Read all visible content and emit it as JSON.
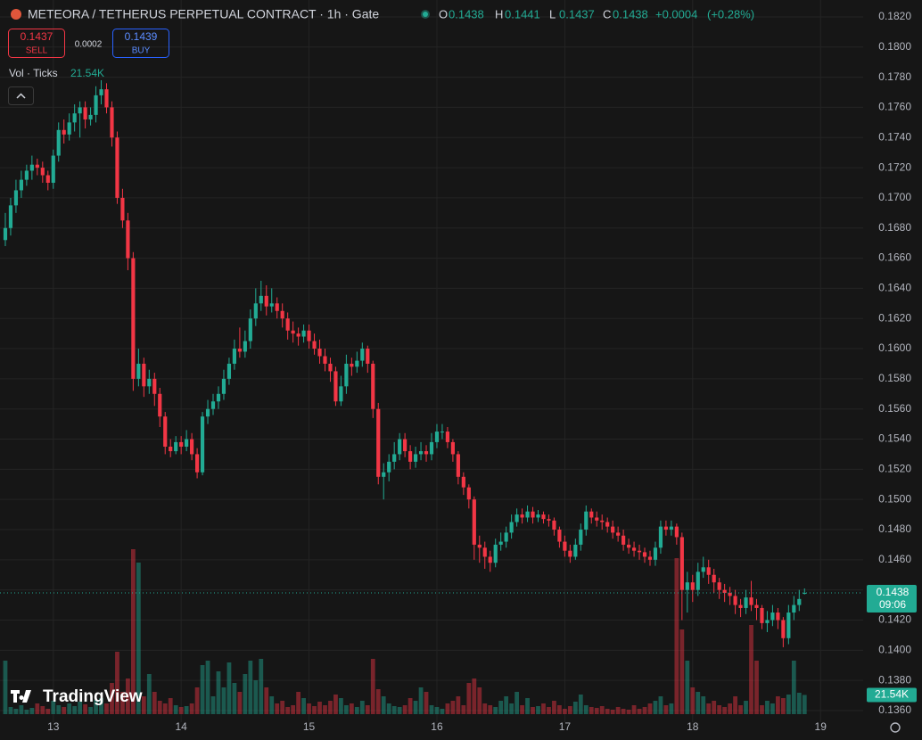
{
  "chart_data": {
    "type": "candlestick",
    "title": "METEORA / TETHERUS PERPETUAL CONTRACT · 1h · Gate",
    "header": {
      "ohlc": [
        {
          "label": "O",
          "value": 0.1438
        },
        {
          "label": "H",
          "value": 0.1441
        },
        {
          "label": "L",
          "value": 0.1437
        },
        {
          "label": "C",
          "value": 0.1438
        }
      ],
      "change": "+0.0004",
      "change_pct": "(+0.28%)"
    },
    "trade": {
      "sell_price": 0.1437,
      "sell_label": "SELL",
      "spread": 0.0002,
      "buy_price": 0.1439,
      "buy_label": "BUY"
    },
    "countdown": "09:06",
    "brand": "TradingView",
    "up_color": "#22ab94",
    "down_color": "#f23645",
    "open": [
      0.1672,
      0.168,
      0.1695,
      0.1705,
      0.1712,
      0.1718,
      0.1722,
      0.172,
      0.1715,
      0.171,
      0.1728,
      0.1745,
      0.1742,
      0.175,
      0.1756,
      0.176,
      0.1752,
      0.1755,
      0.1768,
      0.1772,
      0.176,
      0.174,
      0.17,
      0.1685,
      0.166,
      0.158,
      0.159,
      0.1575,
      0.158,
      0.157,
      0.1555,
      0.1535,
      0.1532,
      0.1538,
      0.1535,
      0.154,
      0.153,
      0.1518,
      0.1555,
      0.156,
      0.1565,
      0.157,
      0.158,
      0.159,
      0.16,
      0.1598,
      0.1605,
      0.162,
      0.163,
      0.1635,
      0.1628,
      0.163,
      0.1625,
      0.162,
      0.1612,
      0.161,
      0.1608,
      0.1612,
      0.1605,
      0.16,
      0.1595,
      0.159,
      0.1585,
      0.1565,
      0.1575,
      0.159,
      0.1588,
      0.1592,
      0.16,
      0.159,
      0.156,
      0.1515,
      0.1518,
      0.1525,
      0.153,
      0.154,
      0.1532,
      0.1525,
      0.153,
      0.1532,
      0.153,
      0.1538,
      0.1545,
      0.1545,
      0.1538,
      0.153,
      0.1515,
      0.1508,
      0.15,
      0.147,
      0.1468,
      0.1462,
      0.1458,
      0.147,
      0.1472,
      0.1478,
      0.1485,
      0.149,
      0.1488,
      0.1492,
      0.1488,
      0.149,
      0.1487,
      0.1486,
      0.148,
      0.1472,
      0.1466,
      0.1462,
      0.147,
      0.148,
      0.1492,
      0.1488,
      0.1486,
      0.1485,
      0.1482,
      0.1478,
      0.1476,
      0.147,
      0.1468,
      0.1466,
      0.1465,
      0.1462,
      0.146,
      0.1468,
      0.1482,
      0.148,
      0.1482,
      0.1475,
      0.144,
      0.1445,
      0.144,
      0.1452,
      0.1455,
      0.145,
      0.1445,
      0.144,
      0.1438,
      0.1436,
      0.143,
      0.1428,
      0.1435,
      0.143,
      0.1428,
      0.1418,
      0.142,
      0.1425,
      0.142,
      0.1408,
      0.1425,
      0.143,
      0.1438
    ],
    "high": [
      0.169,
      0.17,
      0.1712,
      0.1718,
      0.1722,
      0.1728,
      0.1726,
      0.1724,
      0.1718,
      0.1732,
      0.175,
      0.1752,
      0.1756,
      0.1762,
      0.1764,
      0.1764,
      0.176,
      0.1774,
      0.1778,
      0.1776,
      0.1764,
      0.1744,
      0.1706,
      0.169,
      0.1664,
      0.16,
      0.1594,
      0.1586,
      0.1584,
      0.1574,
      0.1558,
      0.154,
      0.1542,
      0.1542,
      0.1546,
      0.1544,
      0.1534,
      0.1558,
      0.1566,
      0.157,
      0.1575,
      0.1586,
      0.1594,
      0.1606,
      0.1614,
      0.1612,
      0.1626,
      0.164,
      0.1645,
      0.1642,
      0.164,
      0.1634,
      0.163,
      0.1624,
      0.1618,
      0.1614,
      0.1616,
      0.1616,
      0.161,
      0.1606,
      0.16,
      0.1594,
      0.1588,
      0.1582,
      0.1596,
      0.1594,
      0.1598,
      0.1604,
      0.1602,
      0.1592,
      0.1564,
      0.1524,
      0.153,
      0.1538,
      0.1544,
      0.1544,
      0.1536,
      0.1535,
      0.1538,
      0.1536,
      0.1544,
      0.155,
      0.155,
      0.1548,
      0.154,
      0.1532,
      0.1518,
      0.151,
      0.1502,
      0.1476,
      0.1472,
      0.1466,
      0.1474,
      0.1478,
      0.1482,
      0.149,
      0.1494,
      0.1494,
      0.1496,
      0.1495,
      0.1493,
      0.1492,
      0.149,
      0.1488,
      0.1482,
      0.1476,
      0.147,
      0.1474,
      0.1484,
      0.1496,
      0.1494,
      0.1492,
      0.149,
      0.1488,
      0.1486,
      0.1482,
      0.148,
      0.1474,
      0.1472,
      0.147,
      0.1468,
      0.1466,
      0.1472,
      0.1486,
      0.1486,
      0.1486,
      0.1484,
      0.1478,
      0.1452,
      0.145,
      0.1458,
      0.1462,
      0.146,
      0.1454,
      0.1448,
      0.1444,
      0.1442,
      0.144,
      0.1434,
      0.144,
      0.1446,
      0.1434,
      0.143,
      0.1426,
      0.143,
      0.1428,
      0.1422,
      0.143,
      0.1436,
      0.144,
      0.1441
    ],
    "low": [
      0.1668,
      0.1675,
      0.169,
      0.17,
      0.1708,
      0.1712,
      0.1715,
      0.171,
      0.1705,
      0.1706,
      0.1724,
      0.1736,
      0.1738,
      0.1744,
      0.174,
      0.1746,
      0.1748,
      0.175,
      0.1762,
      0.1756,
      0.1734,
      0.1696,
      0.168,
      0.1652,
      0.1572,
      0.1575,
      0.1568,
      0.157,
      0.1562,
      0.1548,
      0.153,
      0.1528,
      0.153,
      0.153,
      0.1532,
      0.1526,
      0.1514,
      0.1516,
      0.155,
      0.1556,
      0.156,
      0.1566,
      0.1576,
      0.1586,
      0.1594,
      0.1594,
      0.16,
      0.1615,
      0.1625,
      0.1622,
      0.1624,
      0.162,
      0.1614,
      0.1606,
      0.1604,
      0.1602,
      0.1604,
      0.16,
      0.1596,
      0.159,
      0.1585,
      0.1578,
      0.1562,
      0.1562,
      0.157,
      0.1582,
      0.1584,
      0.1588,
      0.1584,
      0.1554,
      0.151,
      0.15,
      0.1512,
      0.152,
      0.1526,
      0.1528,
      0.152,
      0.1521,
      0.1526,
      0.1525,
      0.1526,
      0.1534,
      0.154,
      0.1534,
      0.1525,
      0.151,
      0.1503,
      0.1494,
      0.146,
      0.1458,
      0.1454,
      0.1452,
      0.1455,
      0.1466,
      0.1468,
      0.1474,
      0.1482,
      0.1484,
      0.1485,
      0.1484,
      0.1485,
      0.1484,
      0.1482,
      0.1476,
      0.1468,
      0.1462,
      0.1458,
      0.146,
      0.1466,
      0.1476,
      0.1484,
      0.1482,
      0.148,
      0.1478,
      0.1474,
      0.1472,
      0.1466,
      0.1464,
      0.1462,
      0.146,
      0.1458,
      0.1456,
      0.1456,
      0.1464,
      0.1476,
      0.1476,
      0.147,
      0.142,
      0.1425,
      0.1432,
      0.1436,
      0.1448,
      0.1444,
      0.1438,
      0.1434,
      0.1432,
      0.143,
      0.1424,
      0.1422,
      0.1424,
      0.1426,
      0.142,
      0.1414,
      0.1412,
      0.1416,
      0.1414,
      0.1402,
      0.1404,
      0.142,
      0.1426,
      0.1437
    ],
    "close": [
      0.168,
      0.1695,
      0.1705,
      0.1712,
      0.1718,
      0.1722,
      0.172,
      0.1715,
      0.171,
      0.1728,
      0.1745,
      0.1742,
      0.175,
      0.1756,
      0.176,
      0.1752,
      0.1755,
      0.1768,
      0.1772,
      0.176,
      0.174,
      0.17,
      0.1685,
      0.166,
      0.158,
      0.159,
      0.1575,
      0.158,
      0.157,
      0.1555,
      0.1535,
      0.1532,
      0.1538,
      0.1535,
      0.154,
      0.153,
      0.1518,
      0.1555,
      0.156,
      0.1565,
      0.157,
      0.158,
      0.159,
      0.16,
      0.1598,
      0.1605,
      0.162,
      0.163,
      0.1635,
      0.1628,
      0.163,
      0.1625,
      0.162,
      0.1612,
      0.161,
      0.1608,
      0.1612,
      0.1605,
      0.16,
      0.1595,
      0.159,
      0.1585,
      0.1565,
      0.1575,
      0.159,
      0.1588,
      0.1592,
      0.16,
      0.159,
      0.156,
      0.1515,
      0.1518,
      0.1525,
      0.153,
      0.154,
      0.1532,
      0.1525,
      0.153,
      0.1532,
      0.153,
      0.1538,
      0.1545,
      0.1545,
      0.1538,
      0.153,
      0.1515,
      0.1508,
      0.15,
      0.147,
      0.1468,
      0.1462,
      0.1458,
      0.147,
      0.1472,
      0.1478,
      0.1485,
      0.149,
      0.1488,
      0.1492,
      0.1488,
      0.149,
      0.1487,
      0.1486,
      0.148,
      0.1472,
      0.1466,
      0.1462,
      0.147,
      0.148,
      0.1492,
      0.1488,
      0.1486,
      0.1485,
      0.1482,
      0.1478,
      0.1476,
      0.147,
      0.1468,
      0.1466,
      0.1465,
      0.1462,
      0.146,
      0.1468,
      0.1482,
      0.148,
      0.1482,
      0.1475,
      0.144,
      0.1445,
      0.144,
      0.1452,
      0.1455,
      0.145,
      0.1445,
      0.144,
      0.1438,
      0.1436,
      0.143,
      0.1428,
      0.1435,
      0.143,
      0.1428,
      0.1418,
      0.142,
      0.1425,
      0.142,
      0.1408,
      0.1425,
      0.143,
      0.1434,
      0.1438
    ],
    "volume": {
      "name": "Vol · Ticks",
      "last_label": "21.54K",
      "values": [
        60,
        8,
        6,
        10,
        5,
        7,
        12,
        9,
        6,
        15,
        10,
        8,
        12,
        9,
        14,
        11,
        8,
        16,
        18,
        12,
        35,
        70,
        25,
        40,
        185,
        170,
        20,
        45,
        25,
        15,
        12,
        18,
        10,
        8,
        9,
        12,
        30,
        55,
        60,
        20,
        48,
        30,
        58,
        35,
        25,
        45,
        60,
        38,
        62,
        30,
        20,
        12,
        15,
        8,
        10,
        25,
        18,
        12,
        9,
        14,
        10,
        15,
        22,
        18,
        10,
        12,
        8,
        15,
        10,
        62,
        28,
        20,
        12,
        9,
        8,
        10,
        18,
        15,
        30,
        25,
        10,
        8,
        6,
        12,
        15,
        20,
        10,
        35,
        40,
        30,
        12,
        10,
        8,
        15,
        20,
        12,
        25,
        10,
        18,
        8,
        9,
        12,
        8,
        15,
        10,
        6,
        9,
        14,
        22,
        10,
        8,
        7,
        9,
        6,
        5,
        8,
        6,
        5,
        10,
        6,
        8,
        12,
        15,
        20,
        10,
        12,
        175,
        95,
        60,
        30,
        25,
        20,
        12,
        15,
        10,
        8,
        12,
        20,
        10,
        15,
        100,
        60,
        10,
        15,
        12,
        20,
        18,
        22,
        60,
        24,
        21.54
      ]
    },
    "xlim": [
      -1,
      161
    ],
    "xticks": [
      {
        "value": 9,
        "label": "13"
      },
      {
        "value": 33,
        "label": "14"
      },
      {
        "value": 57,
        "label": "15"
      },
      {
        "value": 81,
        "label": "16"
      },
      {
        "value": 105,
        "label": "17"
      },
      {
        "value": 129,
        "label": "18"
      },
      {
        "value": 153,
        "label": "19"
      }
    ],
    "ylim": [
      0.13523,
      0.18312
    ],
    "yticks": [
      {
        "value": 0.136,
        "label": "0.1360"
      },
      {
        "value": 0.138,
        "label": "0.1380"
      },
      {
        "value": 0.14,
        "label": "0.1400"
      },
      {
        "value": 0.142,
        "label": "0.1420"
      },
      {
        "value": 0.144,
        "label": "0.1440"
      },
      {
        "value": 0.146,
        "label": "0.1460"
      },
      {
        "value": 0.148,
        "label": "0.1480"
      },
      {
        "value": 0.15,
        "label": "0.1500"
      },
      {
        "value": 0.152,
        "label": "0.1520"
      },
      {
        "value": 0.154,
        "label": "0.1540"
      },
      {
        "value": 0.156,
        "label": "0.1560"
      },
      {
        "value": 0.158,
        "label": "0.1580"
      },
      {
        "value": 0.16,
        "label": "0.1600"
      },
      {
        "value": 0.162,
        "label": "0.1620"
      },
      {
        "value": 0.164,
        "label": "0.1640"
      },
      {
        "value": 0.166,
        "label": "0.1660"
      },
      {
        "value": 0.168,
        "label": "0.1680"
      },
      {
        "value": 0.17,
        "label": "0.1700"
      },
      {
        "value": 0.172,
        "label": "0.1720"
      },
      {
        "value": 0.174,
        "label": "0.1740"
      },
      {
        "value": 0.176,
        "label": "0.1760"
      },
      {
        "value": 0.178,
        "label": "0.1780"
      },
      {
        "value": 0.18,
        "label": "0.1800"
      },
      {
        "value": 0.182,
        "label": "0.1820"
      }
    ],
    "grid": true
  }
}
